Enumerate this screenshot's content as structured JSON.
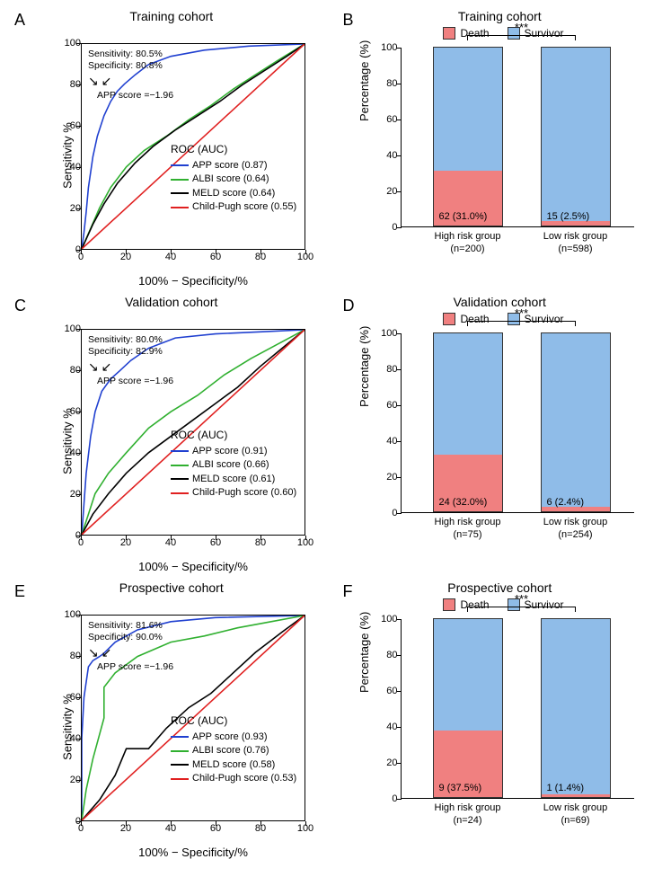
{
  "colors": {
    "app": "#2040d0",
    "albi": "#30b030",
    "meld": "#000000",
    "childpugh": "#e02020",
    "death": "#f08080",
    "survivor": "#8fbce8",
    "axis": "#000000"
  },
  "panels": {
    "A": {
      "label": "A",
      "title": "Training cohort",
      "type": "roc",
      "xlabel": "100% − Specificity/%",
      "ylabel": "Sensitivity %",
      "xlim": [
        0,
        100
      ],
      "ylim": [
        0,
        100
      ],
      "xticks": [
        0,
        20,
        40,
        60,
        80,
        100
      ],
      "yticks": [
        0,
        20,
        40,
        60,
        80,
        100
      ],
      "annotation": {
        "sens_label": "Sensitivity: 80.5%",
        "spec_label": "Specificity: 80.8%",
        "cutoff_label": "APP score =−1.96"
      },
      "legend_title": "ROC (AUC)",
      "series": [
        {
          "name": "APP score",
          "auc": "0.87",
          "color": "#2040d0",
          "points": [
            [
              0,
              0
            ],
            [
              1,
              8
            ],
            [
              2,
              18
            ],
            [
              3,
              30
            ],
            [
              5,
              45
            ],
            [
              7,
              55
            ],
            [
              10,
              65
            ],
            [
              13,
              72
            ],
            [
              16,
              77
            ],
            [
              19.2,
              80.5
            ],
            [
              24,
              85
            ],
            [
              30,
              90
            ],
            [
              40,
              94
            ],
            [
              55,
              97
            ],
            [
              75,
              99
            ],
            [
              100,
              100
            ]
          ]
        },
        {
          "name": "ALBI score",
          "auc": "0.64",
          "color": "#30b030",
          "points": [
            [
              0,
              0
            ],
            [
              4,
              10
            ],
            [
              8,
              20
            ],
            [
              13,
              30
            ],
            [
              20,
              40
            ],
            [
              28,
              48
            ],
            [
              38,
              55
            ],
            [
              48,
              63
            ],
            [
              58,
              70
            ],
            [
              68,
              78
            ],
            [
              78,
              85
            ],
            [
              88,
              92
            ],
            [
              100,
              100
            ]
          ]
        },
        {
          "name": "MELD score",
          "auc": "0.64",
          "color": "#000000",
          "points": [
            [
              0,
              0
            ],
            [
              5,
              12
            ],
            [
              10,
              22
            ],
            [
              16,
              32
            ],
            [
              24,
              42
            ],
            [
              32,
              50
            ],
            [
              42,
              58
            ],
            [
              52,
              65
            ],
            [
              62,
              72
            ],
            [
              72,
              80
            ],
            [
              82,
              87
            ],
            [
              92,
              94
            ],
            [
              100,
              100
            ]
          ]
        },
        {
          "name": "Child-Pugh score",
          "auc": "0.55",
          "color": "#e02020",
          "points": [
            [
              0,
              0
            ],
            [
              100,
              100
            ]
          ]
        }
      ]
    },
    "B": {
      "label": "B",
      "title": "Training cohort",
      "type": "bar",
      "ylabel": "Percentage (%)",
      "ylim": [
        0,
        100
      ],
      "yticks": [
        0,
        20,
        40,
        60,
        80,
        100
      ],
      "legend": [
        {
          "label": "Death",
          "color": "#f08080"
        },
        {
          "label": "Survivor",
          "color": "#8fbce8"
        }
      ],
      "significance": "***",
      "groups": [
        {
          "name": "High risk group",
          "n": "(n=200)",
          "death_pct": 31.0,
          "death_label": "62 (31.0%)"
        },
        {
          "name": "Low risk group",
          "n": "(n=598)",
          "death_pct": 2.5,
          "death_label": "15 (2.5%)"
        }
      ]
    },
    "C": {
      "label": "C",
      "title": "Validation cohort",
      "type": "roc",
      "xlabel": "100% − Specificity/%",
      "ylabel": "Sensitivity %",
      "xlim": [
        0,
        100
      ],
      "ylim": [
        0,
        100
      ],
      "xticks": [
        0,
        20,
        40,
        60,
        80,
        100
      ],
      "yticks": [
        0,
        20,
        40,
        60,
        80,
        100
      ],
      "annotation": {
        "sens_label": "Sensitivity: 80.0%",
        "spec_label": "Specificity: 82.9%",
        "cutoff_label": "APP score =−1.96"
      },
      "legend_title": "ROC (AUC)",
      "series": [
        {
          "name": "APP score",
          "auc": "0.91",
          "color": "#2040d0",
          "points": [
            [
              0,
              0
            ],
            [
              1,
              15
            ],
            [
              2,
              30
            ],
            [
              4,
              48
            ],
            [
              6,
              60
            ],
            [
              9,
              70
            ],
            [
              13,
              76
            ],
            [
              17.1,
              80
            ],
            [
              22,
              85
            ],
            [
              30,
              91
            ],
            [
              42,
              96
            ],
            [
              60,
              98
            ],
            [
              80,
              99
            ],
            [
              100,
              100
            ]
          ]
        },
        {
          "name": "ALBI score",
          "auc": "0.66",
          "color": "#30b030",
          "points": [
            [
              0,
              0
            ],
            [
              3,
              10
            ],
            [
              6,
              20
            ],
            [
              12,
              30
            ],
            [
              20,
              40
            ],
            [
              30,
              52
            ],
            [
              40,
              60
            ],
            [
              52,
              68
            ],
            [
              64,
              78
            ],
            [
              76,
              86
            ],
            [
              88,
              93
            ],
            [
              100,
              100
            ]
          ]
        },
        {
          "name": "MELD score",
          "auc": "0.61",
          "color": "#000000",
          "points": [
            [
              0,
              0
            ],
            [
              5,
              10
            ],
            [
              12,
              20
            ],
            [
              20,
              30
            ],
            [
              30,
              40
            ],
            [
              40,
              48
            ],
            [
              50,
              56
            ],
            [
              60,
              64
            ],
            [
              70,
              72
            ],
            [
              80,
              82
            ],
            [
              90,
              91
            ],
            [
              100,
              100
            ]
          ]
        },
        {
          "name": "Child-Pugh score",
          "auc": "0.60",
          "color": "#e02020",
          "points": [
            [
              0,
              0
            ],
            [
              100,
              100
            ]
          ]
        }
      ]
    },
    "D": {
      "label": "D",
      "title": "Validation cohort",
      "type": "bar",
      "ylabel": "Percentage (%)",
      "ylim": [
        0,
        100
      ],
      "yticks": [
        0,
        20,
        40,
        60,
        80,
        100
      ],
      "legend": [
        {
          "label": "Death",
          "color": "#f08080"
        },
        {
          "label": "Survivor",
          "color": "#8fbce8"
        }
      ],
      "significance": "***",
      "groups": [
        {
          "name": "High risk group",
          "n": "(n=75)",
          "death_pct": 32.0,
          "death_label": "24 (32.0%)"
        },
        {
          "name": "Low risk group",
          "n": "(n=254)",
          "death_pct": 2.4,
          "death_label": "6 (2.4%)"
        }
      ]
    },
    "E": {
      "label": "E",
      "title": "Prospective cohort",
      "type": "roc",
      "xlabel": "100% − Specificity/%",
      "ylabel": "Sensitivity %",
      "xlim": [
        0,
        100
      ],
      "ylim": [
        0,
        100
      ],
      "xticks": [
        0,
        20,
        40,
        60,
        80,
        100
      ],
      "yticks": [
        0,
        20,
        40,
        60,
        80,
        100
      ],
      "annotation": {
        "sens_label": "Sensitivity: 81.6%",
        "spec_label": "Specificity: 90.0%",
        "cutoff_label": "APP score =−1.96"
      },
      "legend_title": "ROC (AUC)",
      "series": [
        {
          "name": "APP score",
          "auc": "0.93",
          "color": "#2040d0",
          "points": [
            [
              0,
              0
            ],
            [
              0,
              40
            ],
            [
              1,
              60
            ],
            [
              3,
              75
            ],
            [
              5,
              78
            ],
            [
              8,
              80
            ],
            [
              10,
              81.6
            ],
            [
              15,
              87
            ],
            [
              25,
              93
            ],
            [
              40,
              97
            ],
            [
              60,
              99
            ],
            [
              100,
              100
            ]
          ]
        },
        {
          "name": "ALBI score",
          "auc": "0.76",
          "color": "#30b030",
          "points": [
            [
              0,
              0
            ],
            [
              2,
              15
            ],
            [
              5,
              30
            ],
            [
              10,
              50
            ],
            [
              10,
              65
            ],
            [
              15,
              72
            ],
            [
              25,
              80
            ],
            [
              40,
              87
            ],
            [
              55,
              90
            ],
            [
              70,
              94
            ],
            [
              85,
              97
            ],
            [
              100,
              100
            ]
          ]
        },
        {
          "name": "MELD score",
          "auc": "0.58",
          "color": "#000000",
          "points": [
            [
              0,
              0
            ],
            [
              8,
              10
            ],
            [
              15,
              22
            ],
            [
              20,
              35
            ],
            [
              30,
              35
            ],
            [
              38,
              45
            ],
            [
              48,
              55
            ],
            [
              58,
              62
            ],
            [
              68,
              72
            ],
            [
              78,
              82
            ],
            [
              90,
              92
            ],
            [
              100,
              100
            ]
          ]
        },
        {
          "name": "Child-Pugh score",
          "auc": "0.53",
          "color": "#e02020",
          "points": [
            [
              0,
              0
            ],
            [
              100,
              100
            ]
          ]
        }
      ]
    },
    "F": {
      "label": "F",
      "title": "Prospective cohort",
      "type": "bar",
      "ylabel": "Percentage (%)",
      "ylim": [
        0,
        100
      ],
      "yticks": [
        0,
        20,
        40,
        60,
        80,
        100
      ],
      "legend": [
        {
          "label": "Death",
          "color": "#f08080"
        },
        {
          "label": "Survivor",
          "color": "#8fbce8"
        }
      ],
      "significance": "***",
      "groups": [
        {
          "name": "High risk group",
          "n": "(n=24)",
          "death_pct": 37.5,
          "death_label": "9 (37.5%)"
        },
        {
          "name": "Low risk group",
          "n": "(n=69)",
          "death_pct": 1.4,
          "death_label": "1 (1.4%)"
        }
      ]
    }
  }
}
